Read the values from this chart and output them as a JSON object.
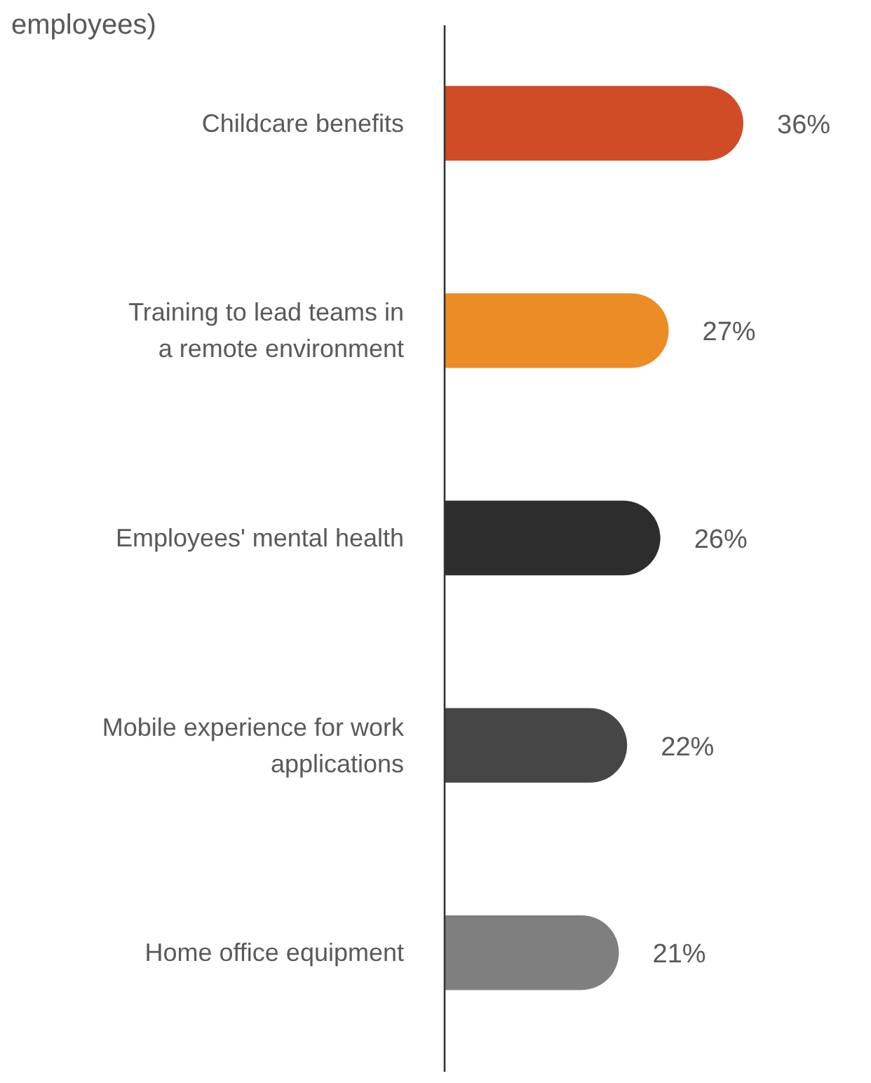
{
  "chart_data": {
    "type": "bar",
    "orientation": "horizontal",
    "title": "employees)",
    "categories": [
      "Childcare benefits",
      "Training to lead teams in a remote environment",
      "Employees' mental health",
      "Mobile experience for work applications",
      "Home office equipment"
    ],
    "values": [
      36,
      27,
      26,
      22,
      21
    ],
    "colors": [
      "#cf4c27",
      "#eb8c25",
      "#2d2d2d",
      "#464646",
      "#7f7f7f"
    ],
    "value_labels": [
      "36%",
      "27%",
      "26%",
      "22%",
      "21%"
    ]
  }
}
